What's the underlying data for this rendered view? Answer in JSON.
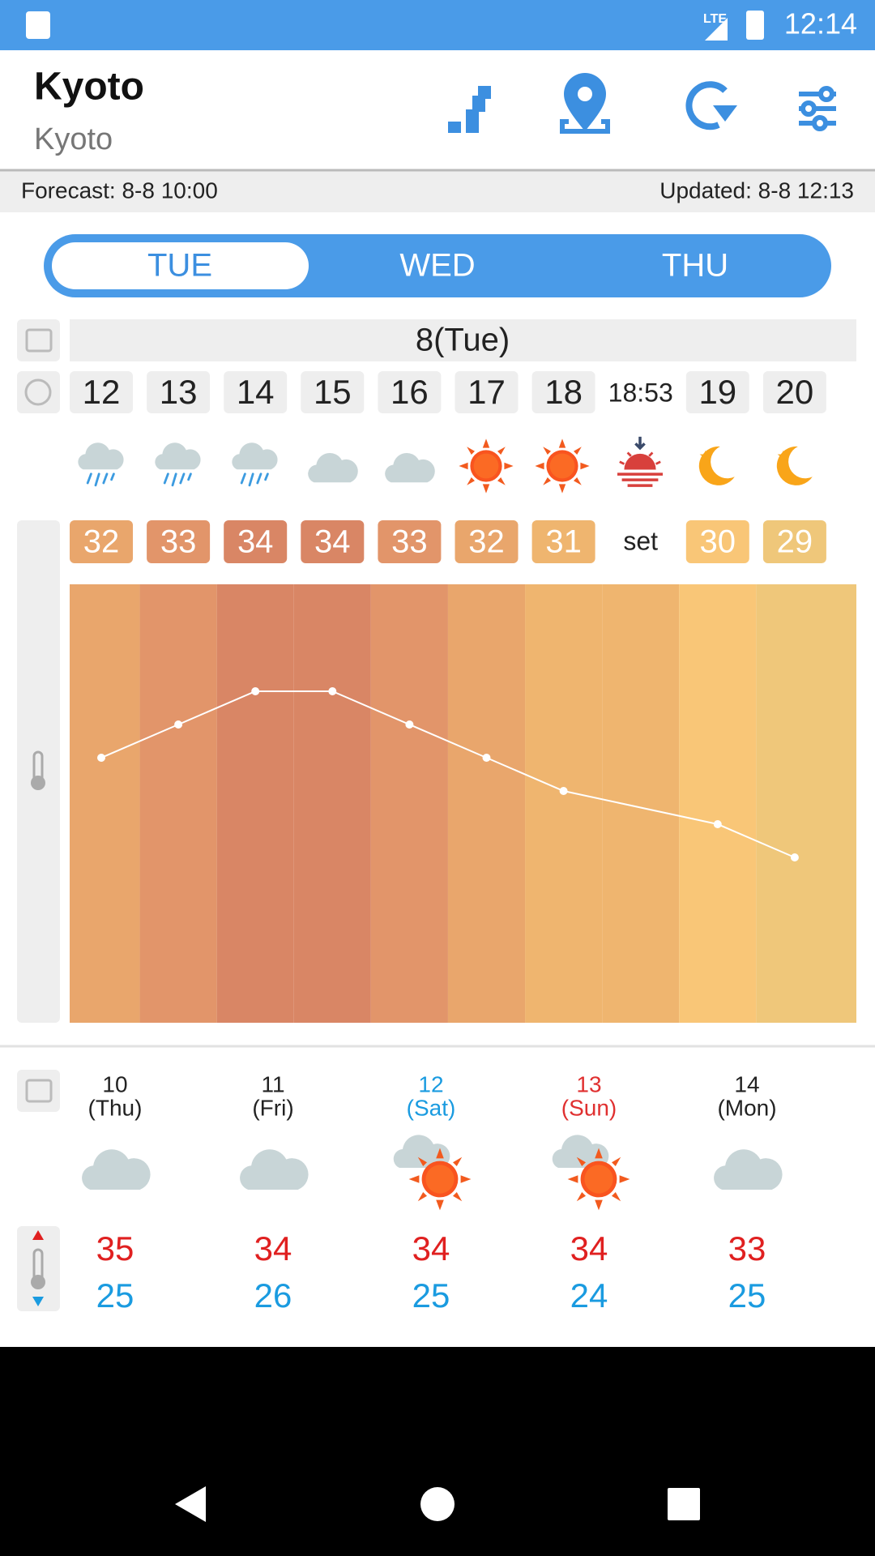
{
  "status_bar": {
    "time": "12:14",
    "network": "LTE"
  },
  "header": {
    "title": "Kyoto",
    "subtitle": "Kyoto"
  },
  "info_bar": {
    "forecast": "Forecast: 8-8 10:00",
    "updated": "Updated: 8-8 12:13"
  },
  "tabs": [
    "TUE",
    "WED",
    "THU"
  ],
  "hourly": {
    "date": "8(Tue)",
    "columns": [
      {
        "time": "12",
        "temp": 32,
        "color": "#e9a66c"
      },
      {
        "time": "13",
        "temp": 33,
        "color": "#e2956a"
      },
      {
        "time": "14",
        "temp": 34,
        "color": "#d98665"
      },
      {
        "time": "15",
        "temp": 34,
        "color": "#d98665"
      },
      {
        "time": "16",
        "temp": 33,
        "color": "#e2956a"
      },
      {
        "time": "17",
        "temp": 32,
        "color": "#e9a66c"
      },
      {
        "time": "18",
        "temp": 31,
        "color": "#efb56f"
      },
      {
        "time": "18:53",
        "label": "set"
      },
      {
        "time": "19",
        "temp": 30,
        "color": "#f9c677"
      },
      {
        "time": "20",
        "temp": 29,
        "color": "#efc77a"
      }
    ]
  },
  "daily": [
    {
      "day": "10",
      "weekday": "(Thu)",
      "color": "#222222",
      "high": 35,
      "low": 25
    },
    {
      "day": "11",
      "weekday": "(Fri)",
      "color": "#222222",
      "high": 34,
      "low": 26
    },
    {
      "day": "12",
      "weekday": "(Sat)",
      "color": "#1a9be0",
      "high": 34,
      "low": 25
    },
    {
      "day": "13",
      "weekday": "(Sun)",
      "color": "#e03030",
      "high": 34,
      "low": 24
    },
    {
      "day": "14",
      "weekday": "(Mon)",
      "color": "#222222",
      "high": 33,
      "low": 25
    }
  ]
}
